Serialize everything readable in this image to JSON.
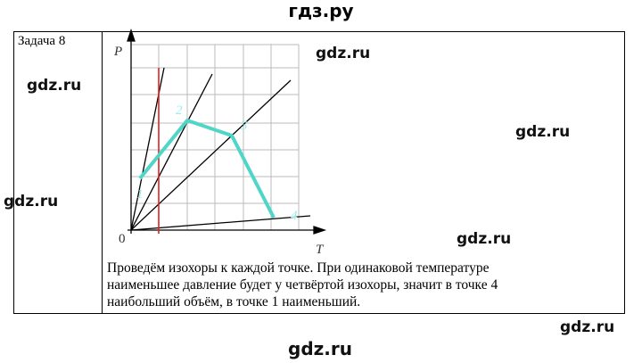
{
  "header": {
    "site": "гдз.ру"
  },
  "task": {
    "title": "Задача 8",
    "graph": {
      "y_axis": "P",
      "x_axis": "T",
      "origin": "0",
      "points": [
        "1",
        "2",
        "3",
        "4"
      ]
    },
    "text_lines": [
      "Проведём изохоры к каждой точке. При одинаковой температуре",
      "наименьшее давление будет у четвёртой изохоры, значит в точке 4",
      "наибольший объём, в точке 1 наименьший."
    ]
  },
  "watermarks": [
    "gdz.ru",
    "gdz.ru",
    "gdz.ru",
    "gdz.ru",
    "gdz.ru",
    "gdz.ru",
    "gdz.ru"
  ]
}
